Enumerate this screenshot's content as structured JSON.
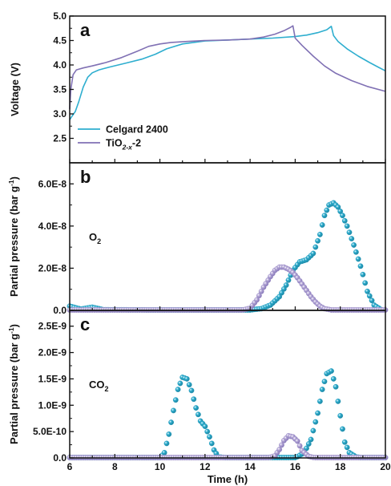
{
  "colors": {
    "celgard": "#2EAECF",
    "tio2": "#8071B4",
    "tio2_fill": "#B6A9D8",
    "axis": "#111111"
  },
  "chart_data": [
    {
      "panel": "a",
      "type": "line",
      "ylabel": "Voltage (V)",
      "ylim": [
        2.0,
        5.0
      ],
      "yticks": [
        "2.5",
        "3.0",
        "3.5",
        "4.0",
        "4.5",
        "5.0"
      ],
      "xlim": [
        6,
        20
      ],
      "legend": {
        "placement": "bottom-left",
        "entries": [
          {
            "key": "celgard",
            "label": "Celgard 2400"
          },
          {
            "key": "tio2",
            "label_main": "TiO",
            "label_sub": "2-x",
            "label_tail": "-2"
          }
        ]
      },
      "series": [
        {
          "key": "celgard",
          "name": "Celgard 2400",
          "x": [
            6.0,
            6.1,
            6.25,
            6.4,
            6.6,
            6.8,
            7.0,
            7.3,
            7.8,
            8.5,
            9.2,
            9.8,
            10.3,
            11.0,
            12.0,
            13.0,
            14.0,
            15.0,
            16.0,
            16.5,
            17.0,
            17.4,
            17.6,
            17.7,
            17.9,
            18.3,
            18.8,
            19.3,
            19.7,
            20.0
          ],
          "y": [
            2.88,
            2.95,
            3.05,
            3.25,
            3.55,
            3.75,
            3.84,
            3.9,
            3.96,
            4.04,
            4.12,
            4.22,
            4.33,
            4.43,
            4.49,
            4.51,
            4.53,
            4.55,
            4.58,
            4.61,
            4.66,
            4.72,
            4.79,
            4.6,
            4.48,
            4.33,
            4.18,
            4.05,
            3.95,
            3.88
          ]
        },
        {
          "key": "tio2",
          "name": "TiO2-x-2",
          "x": [
            6.0,
            6.05,
            6.15,
            6.3,
            6.6,
            7.0,
            7.6,
            8.3,
            9.0,
            9.5,
            10.0,
            10.5,
            11.2,
            12.0,
            13.0,
            14.0,
            14.6,
            15.1,
            15.5,
            15.8,
            15.9,
            16.0,
            16.3,
            16.8,
            17.3,
            17.8,
            18.5,
            19.2,
            20.0
          ],
          "y": [
            3.1,
            3.5,
            3.8,
            3.9,
            3.94,
            3.98,
            4.05,
            4.15,
            4.28,
            4.38,
            4.43,
            4.46,
            4.48,
            4.5,
            4.51,
            4.53,
            4.57,
            4.63,
            4.7,
            4.77,
            4.8,
            4.55,
            4.4,
            4.18,
            3.98,
            3.83,
            3.68,
            3.56,
            3.46
          ]
        }
      ]
    },
    {
      "panel": "b",
      "type": "scatter",
      "ylabel_main": "Partial pressure (bar g",
      "ylabel_sup": "-1",
      "ylabel_tail": ")",
      "gas_main": "O",
      "gas_sub": "2",
      "ylim": [
        0,
        7e-08
      ],
      "yticks": [
        "0.0",
        "2.0E-8",
        "4.0E-8",
        "6.0E-8"
      ],
      "xlim": [
        6,
        20
      ],
      "series": [
        {
          "key": "celgard",
          "name": "Celgard 2400",
          "x": [
            6.0,
            6.5,
            7.0,
            7.5,
            13.5,
            14.0,
            14.5,
            14.9,
            15.3,
            15.6,
            15.9,
            16.2,
            16.5,
            16.8,
            17.1,
            17.3,
            17.5,
            17.7,
            17.9,
            18.1,
            18.3,
            18.6,
            18.9,
            19.2,
            19.5,
            19.8
          ],
          "y": [
            2e-09,
            6e-10,
            1.5e-09,
            3e-10,
            0,
            2e-10,
            8e-10,
            2.5e-09,
            6.5e-09,
            1.2e-08,
            1.9e-08,
            2.3e-08,
            2.4e-08,
            2.7e-08,
            3.6e-08,
            4.5e-08,
            5e-08,
            5.1e-08,
            4.9e-08,
            4.5e-08,
            4e-08,
            3.1e-08,
            2.1e-08,
            9e-09,
            2.5e-09,
            4e-10
          ]
        },
        {
          "key": "tio2",
          "name": "TiO2-x-2",
          "x": [
            6.0,
            8.0,
            12.0,
            13.6,
            14.0,
            14.3,
            14.6,
            14.9,
            15.1,
            15.3,
            15.5,
            15.7,
            15.9,
            16.1,
            16.3,
            16.5,
            16.7,
            16.9,
            17.1,
            17.3,
            17.6,
            18.0,
            20.0
          ],
          "y": [
            0,
            0,
            0,
            0,
            1e-09,
            5e-09,
            1.1e-08,
            1.6e-08,
            1.9e-08,
            2.05e-08,
            2.05e-08,
            1.95e-08,
            1.8e-08,
            1.55e-08,
            1.25e-08,
            9.5e-09,
            6.5e-09,
            4e-09,
            2e-09,
            8e-10,
            2e-10,
            0,
            0
          ]
        }
      ]
    },
    {
      "panel": "c",
      "type": "scatter",
      "ylabel_main": "Partial pressure (bar g",
      "ylabel_sup": "-1",
      "ylabel_tail": ")",
      "gas_main": "CO",
      "gas_sub": "2",
      "ylim": [
        0,
        2.8e-09
      ],
      "yticks": [
        "0.0",
        "5.0E-10",
        "1.0E-9",
        "1.5E-9",
        "2.0E-9",
        "2.5E-9"
      ],
      "xlim": [
        6,
        20
      ],
      "xlabel": "Time (h)",
      "xticks": [
        "6",
        "8",
        "10",
        "12",
        "14",
        "16",
        "18",
        "20"
      ],
      "series": [
        {
          "key": "celgard",
          "name": "Celgard 2400",
          "x": [
            6.0,
            8.0,
            10.0,
            10.2,
            10.4,
            10.6,
            10.8,
            11.0,
            11.2,
            11.4,
            11.6,
            11.8,
            12.0,
            12.2,
            12.4,
            12.6,
            13.0,
            15.0,
            16.0,
            16.4,
            16.7,
            17.0,
            17.2,
            17.4,
            17.6,
            17.8,
            18.0,
            18.2,
            18.4,
            18.7,
            19.0,
            20.0
          ],
          "y": [
            0,
            0,
            0,
            1e-10,
            4.5e-10,
            9e-10,
            1.3e-09,
            1.53e-09,
            1.5e-09,
            1.28e-09,
            9.5e-10,
            7e-10,
            6e-10,
            4e-10,
            1.5e-10,
            2e-11,
            0,
            0,
            0,
            1e-10,
            3.5e-10,
            8.5e-10,
            1.3e-09,
            1.6e-09,
            1.65e-09,
            1.35e-09,
            8e-10,
            3e-10,
            1e-10,
            2e-11,
            0,
            0
          ]
        },
        {
          "key": "tio2",
          "name": "TiO2-x-2",
          "x": [
            6.0,
            9.0,
            13.0,
            14.8,
            15.1,
            15.3,
            15.5,
            15.7,
            15.9,
            16.1,
            16.3,
            16.6,
            16.9,
            20.0
          ],
          "y": [
            0,
            0,
            0,
            0,
            4e-11,
            1.6e-10,
            3.3e-10,
            4.2e-10,
            4e-10,
            3.2e-10,
            1.4e-10,
            3e-11,
            0,
            0
          ]
        }
      ]
    }
  ]
}
